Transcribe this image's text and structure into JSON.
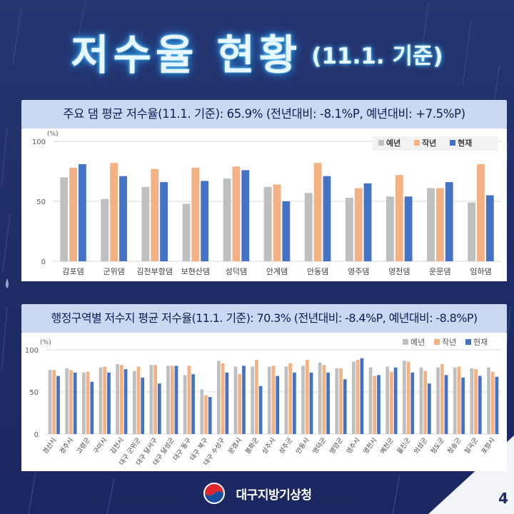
{
  "title": {
    "main": "저수율 현황",
    "sub": "(11.1. 기준)"
  },
  "section1": {
    "heading": "주요 댐 평균 저수율(11.1. 기준): 65.9% (전년대비: -8.1%P, 예년대비: +7.5%P)"
  },
  "section2": {
    "heading": "행정구역별 저수지 평균 저수율(11.1. 기준): 70.3% (전년대비: -8.4%P, 예년대비: -8.8%P)"
  },
  "footer": {
    "agency": "대구지방기상청",
    "page": "4"
  },
  "colors": {
    "normal": "#bfbfbf",
    "last_year": "#f4b183",
    "current": "#4472c4"
  },
  "chart_data": [
    {
      "type": "bar",
      "ylabel": "(%)",
      "ylim": [
        0,
        100
      ],
      "yticks": [
        0,
        50,
        100
      ],
      "legend_position": "top-right",
      "categories": [
        "감포댐",
        "군위댐",
        "김천부항댐",
        "보현산댐",
        "성덕댐",
        "안계댐",
        "안동댐",
        "영주댐",
        "영천댐",
        "운문댐",
        "임하댐"
      ],
      "series": [
        {
          "name": "예년",
          "values": [
            70,
            52,
            62,
            48,
            69,
            62,
            57,
            53,
            54,
            61,
            49
          ]
        },
        {
          "name": "작년",
          "values": [
            78,
            82,
            77,
            78,
            79,
            64,
            82,
            61,
            72,
            61,
            81
          ]
        },
        {
          "name": "현재",
          "values": [
            81,
            71,
            66,
            67,
            76,
            50,
            71,
            65,
            54,
            66,
            55
          ]
        }
      ]
    },
    {
      "type": "bar",
      "ylabel": "(%)",
      "ylim": [
        0,
        100
      ],
      "yticks": [
        0,
        50,
        100
      ],
      "legend_position": "top-right",
      "categories": [
        "경산시",
        "경주시",
        "고령군",
        "구미시",
        "김천시",
        "대구 군위군",
        "대구 달서구",
        "대구 달성군",
        "대구 동구",
        "대구 북구",
        "대구 수성구",
        "문경시",
        "봉화군",
        "상주시",
        "성주군",
        "안동시",
        "영덕군",
        "영양군",
        "영주시",
        "영천시",
        "예천군",
        "울진군",
        "의성군",
        "청도군",
        "청송군",
        "칠곡군",
        "포항시"
      ],
      "series": [
        {
          "name": "예년",
          "values": [
            76,
            78,
            73,
            79,
            83,
            75,
            82,
            81,
            70,
            53,
            87,
            80,
            80,
            80,
            80,
            81,
            85,
            78,
            86,
            79,
            80,
            87,
            79,
            79,
            79,
            78,
            79
          ]
        },
        {
          "name": "작년",
          "values": [
            76,
            76,
            74,
            80,
            82,
            80,
            82,
            81,
            81,
            46,
            84,
            71,
            88,
            81,
            84,
            88,
            82,
            78,
            88,
            69,
            74,
            86,
            75,
            83,
            80,
            77,
            74
          ]
        },
        {
          "name": "현재",
          "values": [
            69,
            73,
            62,
            73,
            77,
            67,
            60,
            81,
            71,
            44,
            73,
            81,
            57,
            69,
            73,
            73,
            73,
            65,
            90,
            70,
            79,
            73,
            60,
            70,
            67,
            69,
            68
          ]
        }
      ]
    }
  ]
}
